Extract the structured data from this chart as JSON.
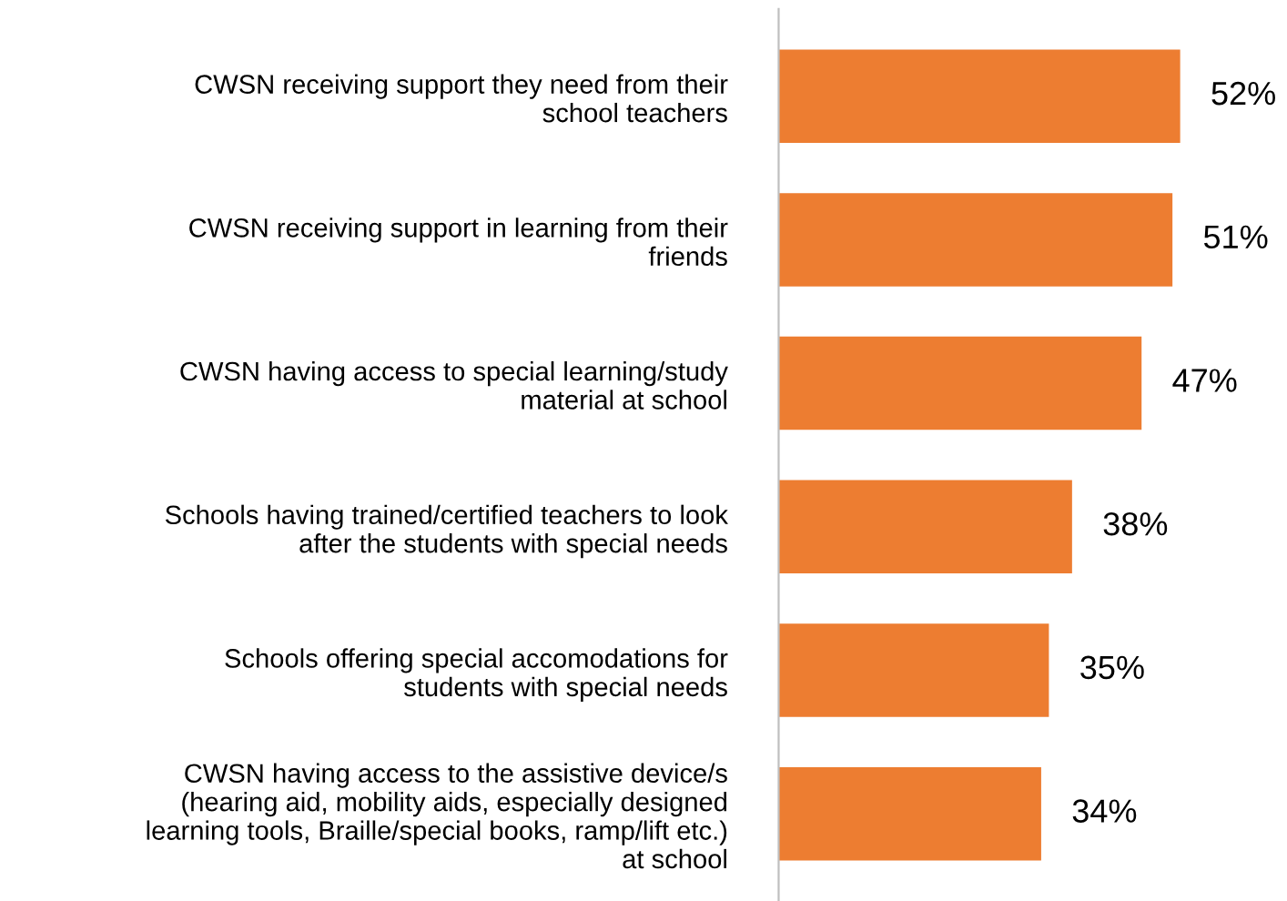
{
  "chart_data": {
    "type": "bar",
    "orientation": "horizontal",
    "data_labels": true,
    "grid": false,
    "legend": false,
    "categories": [
      "CWSN receiving support they need from their\nschool teachers",
      "CWSN receiving support in learning from their\nfriends",
      "CWSN having access to special learning/study\nmaterial at school",
      "Schools having trained/certified teachers to look\nafter the students with special needs",
      "Schools offering special accomodations for\nstudents with special needs",
      "CWSN having access to the assistive device/s\n(hearing aid, mobility aids, especially designed\nlearning tools, Braille/special books, ramp/lift etc.)\nat school"
    ],
    "values": [
      52,
      51,
      47,
      38,
      35,
      34
    ],
    "value_labels": [
      "52%",
      "51%",
      "47%",
      "38%",
      "35%",
      "34%"
    ],
    "color": "#ed7d31"
  }
}
